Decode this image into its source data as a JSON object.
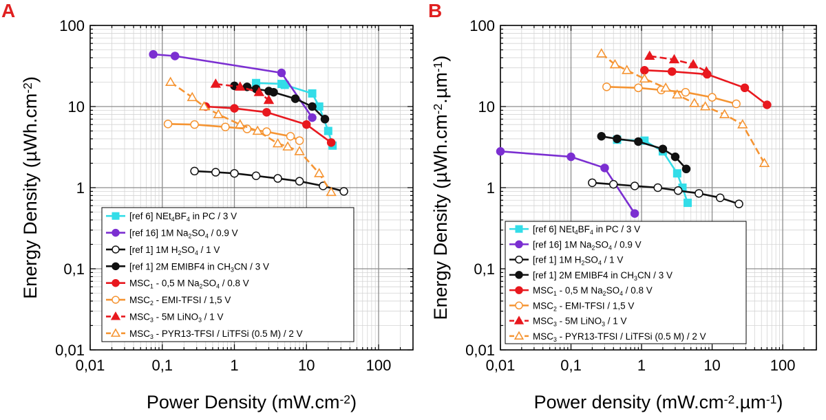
{
  "chart_data": [
    {
      "type": "line",
      "panel_label": "A",
      "xlabel": "Power Density (mW.cm",
      "xlabel_sup": "-2",
      "xlabel_tail": ")",
      "ylabel": "Energy Density (µWh.cm",
      "ylabel_sup": "-2",
      "ylabel_tail": ")",
      "x_scale": "log",
      "y_scale": "log",
      "xlim": [
        0.01,
        300
      ],
      "ylim": [
        0.01,
        100
      ],
      "x_ticks": [
        {
          "v": 0.01,
          "label": "0,01"
        },
        {
          "v": 0.1,
          "label": "0,1"
        },
        {
          "v": 1,
          "label": "1"
        },
        {
          "v": 10,
          "label": "10"
        },
        {
          "v": 100,
          "label": "100"
        }
      ],
      "y_ticks": [
        {
          "v": 0.01,
          "label": "0,01"
        },
        {
          "v": 0.1,
          "label": "0,1"
        },
        {
          "v": 1,
          "label": "1"
        },
        {
          "v": 10,
          "label": "10"
        },
        {
          "v": 100,
          "label": "100"
        }
      ],
      "grid": true,
      "legend_position": "bottom-left",
      "series": [
        {
          "name": "[ref 6] NEt4BF4 in PC / 3 V",
          "color": "#33dde8",
          "marker": "square",
          "filled": true,
          "dashed": false,
          "legend_parts": [
            {
              "t": "[ref 6] NEt"
            },
            {
              "t": "4",
              "s": "sub"
            },
            {
              "t": "BF"
            },
            {
              "t": "4",
              "s": "sub"
            },
            {
              "t": " in PC / 3 V"
            }
          ],
          "x": [
            2,
            4.5,
            5,
            12,
            15,
            20,
            23
          ],
          "y": [
            19.5,
            19,
            18.5,
            14.5,
            10,
            5,
            3.3
          ]
        },
        {
          "name": "[ref 16] 1M Na2SO4 / 0.9 V",
          "color": "#7b2fd1",
          "marker": "circle",
          "filled": true,
          "dashed": false,
          "legend_parts": [
            {
              "t": "[ref 16] 1M Na"
            },
            {
              "t": "2",
              "s": "sub"
            },
            {
              "t": "SO"
            },
            {
              "t": "4",
              "s": "sub"
            },
            {
              "t": " / 0.9 V"
            }
          ],
          "x": [
            0.075,
            0.15,
            4.5,
            12
          ],
          "y": [
            44,
            42,
            26,
            7.3
          ]
        },
        {
          "name": "[ref 1] 1M H2SO4 / 1 V",
          "color": "#111111",
          "marker": "circle",
          "filled": false,
          "dashed": false,
          "legend_parts": [
            {
              "t": "[ref 1] 1M H"
            },
            {
              "t": "2",
              "s": "sub"
            },
            {
              "t": "SO"
            },
            {
              "t": "4",
              "s": "sub"
            },
            {
              "t": " / 1 V"
            }
          ],
          "x": [
            0.28,
            0.55,
            1,
            2,
            4,
            8,
            17,
            33
          ],
          "y": [
            1.6,
            1.55,
            1.5,
            1.4,
            1.3,
            1.2,
            1.05,
            0.9
          ]
        },
        {
          "name": "[ref 1] 2M EMIBF4 in CH3CN / 3 V",
          "color": "#111111",
          "marker": "circle",
          "filled": true,
          "dashed": false,
          "legend_parts": [
            {
              "t": "[ref 1] 2M EMIBF4 in CH"
            },
            {
              "t": "3",
              "s": "sub"
            },
            {
              "t": "CN / 3 V"
            }
          ],
          "x": [
            1,
            1.5,
            2,
            3,
            3.5,
            7,
            12,
            18
          ],
          "y": [
            18,
            17.5,
            16.5,
            15.5,
            15,
            12.5,
            10,
            7
          ]
        },
        {
          "name": "MSC1 - 0,5 M Na2SO4 / 0.8 V",
          "color": "#e8181e",
          "marker": "circle",
          "filled": true,
          "dashed": false,
          "legend_parts": [
            {
              "t": "MSC"
            },
            {
              "t": "1",
              "s": "sub"
            },
            {
              "t": " - 0,5 M Na"
            },
            {
              "t": "2",
              "s": "sub"
            },
            {
              "t": "SO"
            },
            {
              "t": "4",
              "s": "sub"
            },
            {
              "t": " / 0.8 V"
            }
          ],
          "x": [
            0.4,
            1,
            2.8,
            10,
            22
          ],
          "y": [
            10,
            9.5,
            8.5,
            6,
            3.6
          ]
        },
        {
          "name": "MSC2 - EMI-TFSI / 1,5 V",
          "color": "#f59432",
          "marker": "circle",
          "filled": false,
          "dashed": false,
          "legend_parts": [
            {
              "t": "MSC"
            },
            {
              "t": "2",
              "s": "sub"
            },
            {
              "t": " - EMI-TFSI / 1,5 V"
            }
          ],
          "x": [
            0.12,
            0.28,
            0.75,
            1.5,
            2.8,
            6,
            8
          ],
          "y": [
            6.1,
            6,
            5.6,
            5.3,
            4.9,
            4.3,
            3.8
          ]
        },
        {
          "name": "MSC3 - 5M LiNO3 / 1 V",
          "color": "#e8181e",
          "marker": "triangle",
          "filled": true,
          "dashed": true,
          "legend_parts": [
            {
              "t": "MSC"
            },
            {
              "t": "3",
              "s": "sub"
            },
            {
              "t": " - 5M LiNO"
            },
            {
              "t": "3",
              "s": "sub"
            },
            {
              "t": " / 1 V"
            }
          ],
          "x": [
            0.55,
            1.2,
            2.2,
            3
          ],
          "y": [
            19,
            17.5,
            15,
            12
          ]
        },
        {
          "name": "MSC3 - PYR13-TFSI / LiTFSi (0.5 M) / 2 V",
          "color": "#f59432",
          "marker": "triangle",
          "filled": false,
          "dashed": true,
          "legend_parts": [
            {
              "t": "MSC"
            },
            {
              "t": "3",
              "s": "sub"
            },
            {
              "t": " - PYR13-TFSI / LiTFSi (0.5 M) / 2 V"
            }
          ],
          "x": [
            0.13,
            0.26,
            0.38,
            0.6,
            1.2,
            2.1,
            4,
            5.5,
            8,
            15,
            22
          ],
          "y": [
            20,
            13,
            10,
            8,
            6,
            5,
            3.5,
            3.2,
            2.8,
            1.5,
            0.88
          ]
        }
      ]
    },
    {
      "type": "line",
      "panel_label": "B",
      "xlabel": "Power density (mW.cm",
      "xlabel_sup": "-2",
      "xlabel_mid": ".µm",
      "xlabel_sup2": "-1",
      "xlabel_tail": ")",
      "ylabel": "Energy Density (µWh.cm",
      "ylabel_sup": "-2",
      "ylabel_mid": ".µm",
      "ylabel_sup2": "-1",
      "ylabel_tail": ")",
      "x_scale": "log",
      "y_scale": "log",
      "xlim": [
        0.01,
        300
      ],
      "ylim": [
        0.01,
        100
      ],
      "x_ticks": [
        {
          "v": 0.01,
          "label": "0,01"
        },
        {
          "v": 0.1,
          "label": "0,1"
        },
        {
          "v": 1,
          "label": "1"
        },
        {
          "v": 10,
          "label": "10"
        },
        {
          "v": 100,
          "label": "100"
        }
      ],
      "y_ticks": [
        {
          "v": 0.01,
          "label": "0,01"
        },
        {
          "v": 0.1,
          "label": "0,1"
        },
        {
          "v": 1,
          "label": "1"
        },
        {
          "v": 10,
          "label": "10"
        },
        {
          "v": 100,
          "label": "100"
        }
      ],
      "grid": true,
      "legend_position": "bottom-left",
      "series": [
        {
          "name": "[ref 6] NEt4BF4 in PC / 3 V",
          "color": "#33dde8",
          "marker": "square",
          "filled": true,
          "dashed": false,
          "legend_parts": [
            {
              "t": "[ref 6] NEt"
            },
            {
              "t": "4",
              "s": "sub"
            },
            {
              "t": "BF"
            },
            {
              "t": "4",
              "s": "sub"
            },
            {
              "t": " in PC / 3 V"
            }
          ],
          "x": [
            0.45,
            1.1,
            2,
            3.2,
            3.8,
            4.5
          ],
          "y": [
            3.9,
            3.8,
            2.8,
            1.5,
            1,
            0.65
          ]
        },
        {
          "name": "[ref 16] 1M Na2SO4 / 0.9 V",
          "color": "#7b2fd1",
          "marker": "circle",
          "filled": true,
          "dashed": false,
          "legend_parts": [
            {
              "t": "[ref 16] 1M Na"
            },
            {
              "t": "2",
              "s": "sub"
            },
            {
              "t": "SO"
            },
            {
              "t": "4",
              "s": "sub"
            },
            {
              "t": " / 0.9 V"
            }
          ],
          "x": [
            0.01,
            0.1,
            0.3,
            0.8
          ],
          "y": [
            2.8,
            2.4,
            1.75,
            0.48
          ]
        },
        {
          "name": "[ref 1] 1M H2SO4 / 1 V",
          "color": "#111111",
          "marker": "circle",
          "filled": false,
          "dashed": false,
          "legend_parts": [
            {
              "t": "[ref 1] 1M H"
            },
            {
              "t": "2",
              "s": "sub"
            },
            {
              "t": "SO"
            },
            {
              "t": "4",
              "s": "sub"
            },
            {
              "t": " / 1 V"
            }
          ],
          "x": [
            0.2,
            0.4,
            0.8,
            1.7,
            3.3,
            6.5,
            13,
            24
          ],
          "y": [
            1.15,
            1.1,
            1.05,
            1,
            0.92,
            0.85,
            0.75,
            0.63
          ]
        },
        {
          "name": "[ref 1] 2M EMIBF4 in CH3CN / 3 V",
          "color": "#111111",
          "marker": "circle",
          "filled": true,
          "dashed": false,
          "legend_parts": [
            {
              "t": "[ref 1] 2M EMIBF4 in CH"
            },
            {
              "t": "3",
              "s": "sub"
            },
            {
              "t": "CN / 3 V"
            }
          ],
          "x": [
            0.27,
            0.45,
            0.9,
            2,
            3,
            4.3
          ],
          "y": [
            4.3,
            4,
            3.7,
            3,
            2.4,
            1.7
          ]
        },
        {
          "name": "MSC1 - 0,5 M Na2SO4 / 0.8 V",
          "color": "#e8181e",
          "marker": "circle",
          "filled": true,
          "dashed": false,
          "legend_parts": [
            {
              "t": "MSC"
            },
            {
              "t": "1",
              "s": "sub"
            },
            {
              "t": " - 0,5 M Na"
            },
            {
              "t": "2",
              "s": "sub"
            },
            {
              "t": "SO"
            },
            {
              "t": "4",
              "s": "sub"
            },
            {
              "t": " / 0.8 V"
            }
          ],
          "x": [
            1.1,
            2.7,
            8.5,
            29,
            60
          ],
          "y": [
            28,
            27,
            25,
            17,
            10.5
          ]
        },
        {
          "name": "MSC2 - EMI-TFSI / 1,5 V",
          "color": "#f59432",
          "marker": "circle",
          "filled": false,
          "dashed": false,
          "legend_parts": [
            {
              "t": "MSC"
            },
            {
              "t": "2",
              "s": "sub"
            },
            {
              "t": " - EMI-TFSI / 1,5 V"
            }
          ],
          "x": [
            0.32,
            0.9,
            1.9,
            4.2,
            10,
            22
          ],
          "y": [
            17.5,
            17,
            16,
            15,
            13,
            10.8
          ]
        },
        {
          "name": "MSC3 - 5M LiNO3 / 1 V",
          "color": "#e8181e",
          "marker": "triangle",
          "filled": true,
          "dashed": true,
          "legend_parts": [
            {
              "t": "MSC"
            },
            {
              "t": "3",
              "s": "sub"
            },
            {
              "t": " - 5M LiNO"
            },
            {
              "t": "3",
              "s": "sub"
            },
            {
              "t": " / 1 V"
            }
          ],
          "x": [
            1.3,
            2.9,
            5.4,
            8.3
          ],
          "y": [
            42,
            38,
            33,
            27
          ]
        },
        {
          "name": "MSC3 - PYR13-TFSI / LiTFSi (0.5 M) / 2 V",
          "color": "#f59432",
          "marker": "triangle",
          "filled": false,
          "dashed": true,
          "legend_parts": [
            {
              "t": "MSC"
            },
            {
              "t": "3",
              "s": "sub"
            },
            {
              "t": " - PYR13-TFSI / LiTFSi (0.5 M) / 2 V"
            }
          ],
          "x": [
            0.27,
            0.42,
            0.62,
            1.1,
            2.2,
            3.2,
            5.6,
            8,
            15,
            27,
            55
          ],
          "y": [
            45,
            33,
            28,
            22,
            17,
            14,
            11,
            10,
            8,
            6,
            2
          ]
        }
      ]
    }
  ]
}
